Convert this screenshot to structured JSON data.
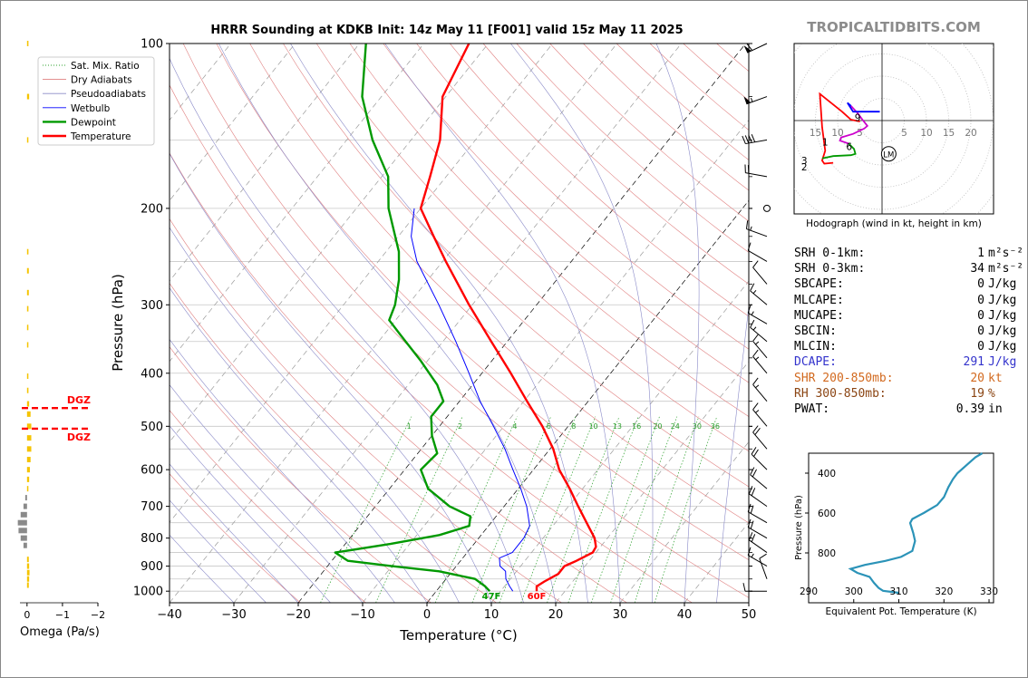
{
  "title": "HRRR Sounding at KDKB Init: 14z May 11 [F001] valid 15z May 11 2025",
  "brand": "TROPICALTIDBITS.COM",
  "chart_data": {
    "type": "line",
    "subtype": "skew-T log-p sounding",
    "xlabel": "Temperature (°C)",
    "ylabel": "Pressure (hPa)",
    "xlim": [
      -40,
      50
    ],
    "ylim": [
      1050,
      100
    ],
    "y_scale": "log",
    "x_ticks": [
      "−40",
      "−30",
      "−20",
      "−10",
      "0",
      "10",
      "20",
      "30",
      "40",
      "50"
    ],
    "y_ticks": [
      100,
      200,
      300,
      400,
      500,
      600,
      700,
      800,
      900,
      1000
    ],
    "legend": {
      "placement": "top-left",
      "entries": [
        {
          "label": "Sat. Mix. Ratio",
          "color": "#2ca02c",
          "style": "dotted"
        },
        {
          "label": "Dry Adiabats",
          "color": "#e08080",
          "style": "solid"
        },
        {
          "label": "Pseudoadiabats",
          "color": "#8a8ac8",
          "style": "solid"
        },
        {
          "label": "Wetbulb",
          "color": "#0000ff",
          "style": "solid"
        },
        {
          "label": "Dewpoint",
          "color": "#009900",
          "style": "solid"
        },
        {
          "label": "Temperature",
          "color": "#ff0000",
          "style": "solid"
        }
      ]
    },
    "mixing_ratio_labels": [
      "1",
      "2",
      "4",
      "6",
      "8",
      "10",
      "13",
      "16",
      "20",
      "24",
      "30",
      "36"
    ],
    "mixing_ratio_values": [
      1,
      2,
      4,
      6,
      8,
      10,
      13,
      16,
      20,
      24,
      30,
      36
    ],
    "series": [
      {
        "name": "Temperature",
        "color": "#ff0000",
        "points": [
          [
            1000,
            15.6
          ],
          [
            980,
            15.0
          ],
          [
            960,
            15.6
          ],
          [
            930,
            16.8
          ],
          [
            900,
            16.8
          ],
          [
            880,
            18.0
          ],
          [
            850,
            19.5
          ],
          [
            830,
            19.3
          ],
          [
            800,
            18.0
          ],
          [
            760,
            15.5
          ],
          [
            700,
            11.5
          ],
          [
            650,
            8.0
          ],
          [
            600,
            4.0
          ],
          [
            550,
            0.5
          ],
          [
            500,
            -4.0
          ],
          [
            450,
            -9.5
          ],
          [
            400,
            -15.5
          ],
          [
            350,
            -22.5
          ],
          [
            300,
            -30.5
          ],
          [
            250,
            -39.5
          ],
          [
            225,
            -44.5
          ],
          [
            200,
            -50.0
          ],
          [
            175,
            -52.5
          ],
          [
            150,
            -55.5
          ],
          [
            125,
            -60.5
          ],
          [
            100,
            -63.0
          ]
        ]
      },
      {
        "name": "Dewpoint",
        "color": "#009900",
        "points": [
          [
            1000,
            8.3
          ],
          [
            980,
            7.0
          ],
          [
            950,
            4.5
          ],
          [
            920,
            -2.0
          ],
          [
            900,
            -10.0
          ],
          [
            880,
            -17.5
          ],
          [
            850,
            -20.5
          ],
          [
            820,
            -13.0
          ],
          [
            790,
            -6.5
          ],
          [
            760,
            -3.0
          ],
          [
            730,
            -4.0
          ],
          [
            700,
            -8.5
          ],
          [
            650,
            -14.0
          ],
          [
            600,
            -17.5
          ],
          [
            560,
            -17.0
          ],
          [
            520,
            -20.0
          ],
          [
            480,
            -22.5
          ],
          [
            450,
            -22.5
          ],
          [
            420,
            -25.5
          ],
          [
            380,
            -31.0
          ],
          [
            340,
            -37.5
          ],
          [
            320,
            -41.0
          ],
          [
            300,
            -42.0
          ],
          [
            270,
            -44.5
          ],
          [
            240,
            -48.0
          ],
          [
            200,
            -55.0
          ],
          [
            175,
            -59.0
          ],
          [
            150,
            -66.0
          ],
          [
            125,
            -73.0
          ],
          [
            100,
            -79.0
          ]
        ]
      },
      {
        "name": "Wetbulb",
        "color": "#0000ff",
        "points": [
          [
            1000,
            11.9
          ],
          [
            980,
            10.8
          ],
          [
            950,
            9.3
          ],
          [
            920,
            8.3
          ],
          [
            900,
            6.8
          ],
          [
            870,
            5.7
          ],
          [
            850,
            7.0
          ],
          [
            800,
            7.0
          ],
          [
            760,
            6.4
          ],
          [
            700,
            3.5
          ],
          [
            650,
            0.4
          ],
          [
            600,
            -3.2
          ],
          [
            550,
            -7.0
          ],
          [
            500,
            -11.6
          ],
          [
            450,
            -16.8
          ],
          [
            400,
            -22.0
          ],
          [
            350,
            -28.0
          ],
          [
            300,
            -35.2
          ],
          [
            250,
            -44.0
          ],
          [
            225,
            -48.0
          ],
          [
            200,
            -51.0
          ]
        ]
      }
    ],
    "surface_labels": {
      "dewpoint": "47F",
      "temperature": "60F"
    },
    "dgz": {
      "label": "DGZ",
      "pressures": [
        463,
        505
      ]
    },
    "wind_barbs": [
      {
        "p": 100,
        "dir": 245,
        "kt": 60
      },
      {
        "p": 125,
        "dir": 250,
        "kt": 55
      },
      {
        "p": 150,
        "dir": 260,
        "kt": 40
      },
      {
        "p": 175,
        "dir": 280,
        "kt": 20
      },
      {
        "p": 200,
        "dir": 0,
        "kt": 0
      },
      {
        "p": 225,
        "dir": 290,
        "kt": 15
      },
      {
        "p": 250,
        "dir": 300,
        "kt": 10
      },
      {
        "p": 275,
        "dir": 320,
        "kt": 10
      },
      {
        "p": 300,
        "dir": 310,
        "kt": 15
      },
      {
        "p": 325,
        "dir": 300,
        "kt": 15
      },
      {
        "p": 350,
        "dir": 310,
        "kt": 15
      },
      {
        "p": 375,
        "dir": 320,
        "kt": 15
      },
      {
        "p": 400,
        "dir": 320,
        "kt": 15
      },
      {
        "p": 450,
        "dir": 320,
        "kt": 15
      },
      {
        "p": 500,
        "dir": 320,
        "kt": 15
      },
      {
        "p": 550,
        "dir": 320,
        "kt": 20
      },
      {
        "p": 600,
        "dir": 315,
        "kt": 20
      },
      {
        "p": 650,
        "dir": 310,
        "kt": 20
      },
      {
        "p": 700,
        "dir": 305,
        "kt": 20
      },
      {
        "p": 750,
        "dir": 300,
        "kt": 20
      },
      {
        "p": 800,
        "dir": 300,
        "kt": 20
      },
      {
        "p": 850,
        "dir": 305,
        "kt": 20
      },
      {
        "p": 900,
        "dir": 300,
        "kt": 15
      },
      {
        "p": 950,
        "dir": 340,
        "kt": 10
      },
      {
        "p": 1000,
        "dir": 270,
        "kt": 10
      }
    ],
    "omega": {
      "xlabel": "Omega (Pa/s)",
      "x_ticks": [
        "0",
        "−1",
        "−2"
      ],
      "xlim": [
        0.2,
        -2
      ],
      "bars": [
        {
          "p": 100,
          "v": -0.04
        },
        {
          "p": 125,
          "v": -0.06
        },
        {
          "p": 150,
          "v": -0.03
        },
        {
          "p": 240,
          "v": -0.04
        },
        {
          "p": 260,
          "v": -0.05
        },
        {
          "p": 285,
          "v": -0.05
        },
        {
          "p": 305,
          "v": -0.04
        },
        {
          "p": 330,
          "v": -0.03
        },
        {
          "p": 355,
          "v": -0.02
        },
        {
          "p": 405,
          "v": -0.02
        },
        {
          "p": 430,
          "v": -0.04
        },
        {
          "p": 455,
          "v": -0.06
        },
        {
          "p": 475,
          "v": -0.1
        },
        {
          "p": 500,
          "v": -0.12
        },
        {
          "p": 525,
          "v": -0.12
        },
        {
          "p": 550,
          "v": -0.12
        },
        {
          "p": 575,
          "v": -0.1
        },
        {
          "p": 600,
          "v": -0.08
        },
        {
          "p": 625,
          "v": -0.06
        },
        {
          "p": 650,
          "v": -0.02
        },
        {
          "p": 675,
          "v": 0.05
        },
        {
          "p": 700,
          "v": 0.1
        },
        {
          "p": 725,
          "v": 0.18
        },
        {
          "p": 750,
          "v": 0.26
        },
        {
          "p": 775,
          "v": 0.24
        },
        {
          "p": 800,
          "v": 0.18
        },
        {
          "p": 825,
          "v": 0.1
        },
        {
          "p": 875,
          "v": -0.05
        },
        {
          "p": 900,
          "v": -0.06
        },
        {
          "p": 925,
          "v": -0.07
        },
        {
          "p": 950,
          "v": -0.06
        },
        {
          "p": 975,
          "v": -0.05
        }
      ]
    },
    "hodograph": {
      "caption": "Hodograph (wind in kt, height in km)",
      "ring_labels": [
        "5",
        "10",
        "15",
        "20",
        "15",
        "10",
        "5"
      ],
      "ring_label_values": [
        5,
        10,
        15,
        20,
        -15,
        -10,
        -5
      ],
      "segments": [
        {
          "color": "#ff0000",
          "points": [
            [
              -11,
              -9.5
            ],
            [
              -13,
              -9.7
            ],
            [
              -13.5,
              -9
            ],
            [
              -12.8,
              -6.8
            ],
            [
              -13.5,
              -1.5
            ],
            [
              -14,
              6
            ],
            [
              -9,
              2
            ],
            [
              -7,
              0.2
            ],
            [
              -5,
              -0.2
            ]
          ]
        },
        {
          "color": "#009900",
          "points": [
            [
              -13.5,
              -8.5
            ],
            [
              -11,
              -8
            ],
            [
              -7,
              -7.8
            ],
            [
              -6,
              -7.5
            ],
            [
              -6.3,
              -6.4
            ],
            [
              -7.5,
              -5.2
            ]
          ]
        },
        {
          "color": "#cc00cc",
          "points": [
            [
              -7.5,
              -5.2
            ],
            [
              -9.5,
              -4.5
            ],
            [
              -9.2,
              -3.8
            ],
            [
              -6.5,
              -3.0
            ],
            [
              -4,
              -1.8
            ],
            [
              -3.3,
              -1.2
            ],
            [
              -4.5,
              0.3
            ],
            [
              -5.5,
              1.7
            ],
            [
              -7.0,
              3.3
            ]
          ]
        },
        {
          "color": "#0000ff",
          "points": [
            [
              -7.0,
              3.3
            ],
            [
              -7.8,
              4.0
            ],
            [
              -6.5,
              2.0
            ],
            [
              -3.0,
              2.0
            ],
            [
              -0.5,
              2.0
            ]
          ]
        }
      ],
      "height_labels": [
        {
          "km": "1",
          "u": -12.8,
          "v": -4.8
        },
        {
          "km": "2",
          "u": -17.5,
          "v": -10.4
        },
        {
          "km": "3",
          "u": -17.5,
          "v": -9.0
        },
        {
          "km": "6",
          "u": -7.4,
          "v": -5.8
        },
        {
          "km": "9",
          "u": -5.5,
          "v": 0.7
        }
      ],
      "lm_label": "LM",
      "lm": {
        "u": 1.5,
        "v": -7.5
      }
    },
    "theta_e": {
      "xlabel": "Equivalent Pot. Temperature (K)",
      "ylabel": "Pressure (hPa)",
      "x_ticks": [
        "290",
        "300",
        "310",
        "320",
        "330"
      ],
      "x_tick_values": [
        290,
        300,
        310,
        320,
        330
      ],
      "xlim": [
        290,
        331
      ],
      "y_ticks": [
        "400",
        "600",
        "800"
      ],
      "y_tick_values": [
        400,
        600,
        800
      ],
      "ylim": [
        1050,
        300
      ],
      "color": "#2b93b8",
      "points": [
        [
          1000,
          310.0
        ],
        [
          990,
          306.5
        ],
        [
          975,
          305.5
        ],
        [
          950,
          304.5
        ],
        [
          920,
          303.5
        ],
        [
          900,
          300.8
        ],
        [
          880,
          299.3
        ],
        [
          860,
          302.5
        ],
        [
          840,
          307.0
        ],
        [
          820,
          310.5
        ],
        [
          790,
          313.0
        ],
        [
          740,
          313.6
        ],
        [
          700,
          313.2
        ],
        [
          650,
          312.5
        ],
        [
          630,
          313.0
        ],
        [
          600,
          315.5
        ],
        [
          560,
          318.5
        ],
        [
          520,
          320.0
        ],
        [
          470,
          321.0
        ],
        [
          430,
          322.0
        ],
        [
          400,
          323.0
        ],
        [
          340,
          326.0
        ],
        [
          320,
          327.0
        ],
        [
          300,
          328.5
        ]
      ]
    }
  },
  "params": [
    {
      "label": "SRH 0-1km:",
      "value": "1",
      "unit": "m²s⁻²",
      "color": "#000000"
    },
    {
      "label": "SRH 0-3km:",
      "value": "34",
      "unit": "m²s⁻²",
      "color": "#000000"
    },
    {
      "label": "SBCAPE:",
      "value": "0",
      "unit": "J/kg",
      "color": "#000000"
    },
    {
      "label": "MLCAPE:",
      "value": "0",
      "unit": "J/kg",
      "color": "#000000"
    },
    {
      "label": "MUCAPE:",
      "value": "0",
      "unit": "J/kg",
      "color": "#000000"
    },
    {
      "label": "SBCIN:",
      "value": "0",
      "unit": "J/kg",
      "color": "#000000"
    },
    {
      "label": "MLCIN:",
      "value": "0",
      "unit": "J/kg",
      "color": "#000000"
    },
    {
      "label": "DCAPE:",
      "value": "291",
      "unit": "J/kg",
      "color": "#3333cc"
    },
    {
      "label": "SHR 200-850mb:",
      "value": "20",
      "unit": "kt",
      "color": "#d2691e"
    },
    {
      "label": "RH 300-850mb:",
      "value": "19",
      "unit": "%",
      "color": "#8b4513"
    },
    {
      "label": "PWAT:",
      "value": "0.39",
      "unit": "in",
      "color": "#000000"
    }
  ]
}
